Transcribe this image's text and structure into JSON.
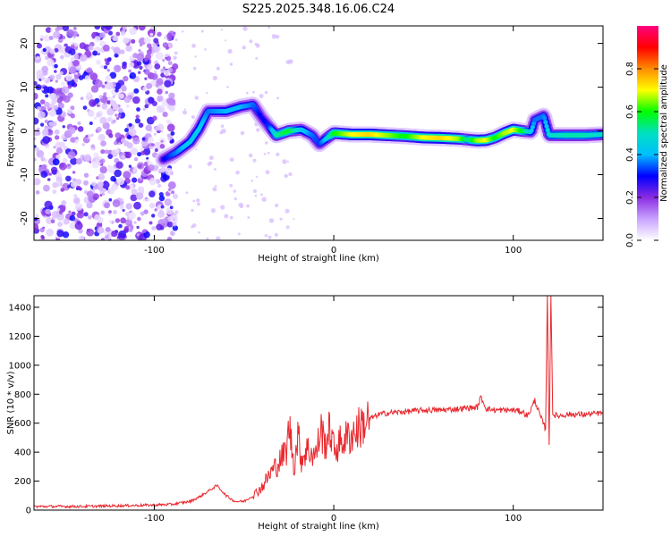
{
  "figure_title": "S225.2025.348.16.06.C24",
  "chart_data": [
    {
      "type": "heatmap",
      "title": "S225.2025.348.16.06.C24",
      "xlabel": "Height of straight line (km)",
      "ylabel": "Frequency (Hz)",
      "xlim": [
        -167,
        150
      ],
      "ylim": [
        -25,
        24
      ],
      "xticks": [
        -100,
        0,
        100
      ],
      "yticks": [
        -20,
        -10,
        0,
        10,
        20
      ],
      "colorbar": {
        "label": "Normalized spectral amplitude",
        "range": [
          0,
          1
        ],
        "ticks": [
          0.0,
          0.2,
          0.4,
          0.6,
          0.8
        ],
        "tick_labels": [
          "0.0",
          "0.2",
          "0.4",
          "0.6",
          "0.8"
        ],
        "colormap": [
          "#ffffff",
          "#c9a3ff",
          "#8a2be2",
          "#0000ff",
          "#00bfff",
          "#00e0c0",
          "#00ff00",
          "#ffff00",
          "#ff8c00",
          "#ff0000",
          "#ff007f"
        ]
      },
      "noise_region_x": [
        -167,
        -88
      ],
      "signal_ridge": {
        "x": [
          -95,
          -88,
          -80,
          -75,
          -70,
          -60,
          -52,
          -45,
          -40,
          -36,
          -32,
          -25,
          -18,
          -12,
          -8,
          -5,
          0,
          10,
          20,
          30,
          40,
          50,
          60,
          70,
          75,
          80,
          85,
          90,
          95,
          100,
          105,
          110,
          112,
          117,
          120,
          130,
          140,
          150
        ],
        "y": [
          -6.5,
          -5,
          -2.5,
          0.5,
          4.5,
          4.5,
          5.5,
          6,
          3,
          1,
          -1,
          0,
          0.3,
          -1,
          -3,
          -2,
          -0.5,
          -0.8,
          -0.8,
          -1,
          -1.2,
          -1.5,
          -1.6,
          -1.8,
          -2,
          -2.2,
          -2.1,
          -1.5,
          -0.5,
          0.3,
          0,
          -0.2,
          2.5,
          3.5,
          -1,
          -1,
          -1,
          -0.8
        ],
        "peak_amplitude": [
          0.3,
          0.4,
          0.5,
          0.5,
          0.4,
          0.45,
          0.45,
          0.4,
          0.3,
          0.35,
          0.6,
          0.7,
          0.5,
          0.4,
          0.35,
          0.45,
          0.7,
          0.85,
          0.9,
          0.8,
          0.7,
          0.85,
          0.9,
          0.8,
          0.6,
          0.8,
          0.85,
          0.7,
          0.8,
          0.85,
          0.7,
          0.5,
          0.4,
          0.4,
          0.55,
          0.6,
          0.6,
          0.55
        ]
      }
    },
    {
      "type": "line",
      "xlabel": "Height of straight line (km)",
      "ylabel": "SNR (10 * v/v)",
      "xlim": [
        -167,
        150
      ],
      "ylim": [
        0,
        1480
      ],
      "xticks": [
        -100,
        0,
        100
      ],
      "yticks": [
        0,
        200,
        400,
        600,
        800,
        1000,
        1200,
        1400
      ],
      "series": [
        {
          "name": "SNR",
          "color": "#e8282e",
          "x": [
            -167,
            -140,
            -120,
            -100,
            -90,
            -80,
            -75,
            -70,
            -65,
            -60,
            -55,
            -50,
            -45,
            -40,
            -35,
            -30,
            -26,
            -25,
            -22,
            -20,
            -18,
            -15,
            -10,
            -7,
            -5,
            -2,
            0,
            5,
            10,
            15,
            20,
            25,
            30,
            40,
            50,
            60,
            70,
            80,
            82,
            85,
            90,
            100,
            105,
            108,
            110,
            112,
            115,
            118,
            119,
            120,
            121,
            122,
            125,
            130,
            140,
            150
          ],
          "y": [
            25,
            25,
            30,
            35,
            40,
            60,
            90,
            130,
            170,
            100,
            60,
            60,
            100,
            160,
            260,
            340,
            420,
            600,
            300,
            520,
            350,
            420,
            380,
            560,
            450,
            560,
            420,
            480,
            520,
            580,
            630,
            660,
            670,
            680,
            690,
            690,
            700,
            710,
            780,
            700,
            690,
            690,
            680,
            650,
            700,
            760,
            650,
            560,
            1480,
            450,
            1480,
            660,
            650,
            660,
            660,
            670
          ]
        }
      ]
    }
  ]
}
